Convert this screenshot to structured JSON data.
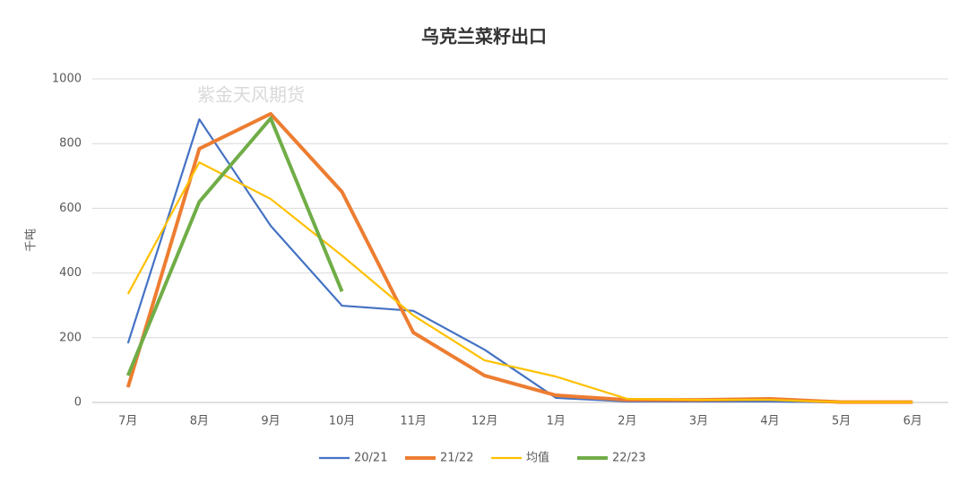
{
  "chart_data": {
    "type": "line",
    "title": "乌克兰菜籽出口",
    "y_label": "千吨",
    "watermark": "紫金天风期货",
    "categories": [
      "7月",
      "8月",
      "9月",
      "10月",
      "11月",
      "12月",
      "1月",
      "2月",
      "3月",
      "4月",
      "5月",
      "6月"
    ],
    "series": [
      {
        "name": "20/21",
        "color": "#4472c4",
        "values": [
          183,
          875,
          546,
          299,
          283,
          163,
          14,
          3,
          3,
          3,
          0,
          0
        ]
      },
      {
        "name": "21/22",
        "color": "#ed7d31",
        "values": [
          47,
          784,
          892,
          651,
          216,
          83,
          22,
          8,
          8,
          11,
          1,
          1
        ]
      },
      {
        "name": "均值",
        "color": "#ffc000",
        "values": [
          335,
          742,
          629,
          454,
          269,
          130,
          80,
          11,
          8,
          8,
          1,
          1
        ]
      },
      {
        "name": "22/23",
        "color": "#70ad47",
        "values": [
          83,
          620,
          878,
          343,
          null,
          null,
          null,
          null,
          null,
          null,
          null,
          null
        ]
      }
    ],
    "ylim": [
      0,
      1000
    ],
    "yticks": [
      0,
      200,
      400,
      600,
      800,
      1000
    ],
    "grid": true,
    "legend": "bottom"
  }
}
